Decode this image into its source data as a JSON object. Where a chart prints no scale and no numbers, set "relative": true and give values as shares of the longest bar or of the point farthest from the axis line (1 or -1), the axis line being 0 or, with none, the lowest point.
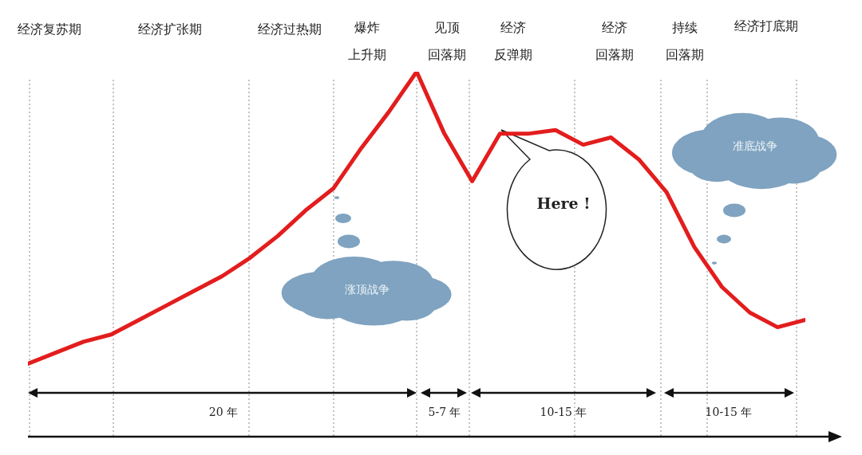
{
  "chart_data": {
    "type": "line",
    "relative": true,
    "line_style": "solid",
    "categories": [
      null,
      null,
      null,
      null,
      null,
      null,
      null,
      null,
      null,
      null,
      null,
      null,
      null,
      null,
      null,
      null,
      null,
      null,
      null,
      null,
      null,
      null,
      null,
      null,
      null,
      null,
      null,
      null,
      null
    ],
    "series": [
      {
        "color": "#e31d1d",
        "values": [
          0.2,
          0.23,
          0.26,
          0.28,
          0.32,
          0.36,
          0.4,
          0.44,
          0.49,
          0.55,
          0.62,
          0.68,
          0.79,
          0.89,
          1,
          0.83,
          0.7,
          0.83,
          0.83,
          0.84,
          0.8,
          0.82,
          0.76,
          0.67,
          0.52,
          0.41,
          0.34,
          0.3,
          0.32
        ]
      }
    ],
    "grid": "x",
    "annotations": [
      "经济复苏期",
      "经济扩张期",
      "经济过热期",
      "爆炸上升期",
      "见顶回落期",
      "经济反弹期",
      "经济回落期",
      "持续回落期",
      "经济打底期",
      "20 年",
      "5-7 年",
      "10-15 年",
      "10-15 年",
      "涨顶战争",
      "准底战争",
      "Here !"
    ]
  }
}
